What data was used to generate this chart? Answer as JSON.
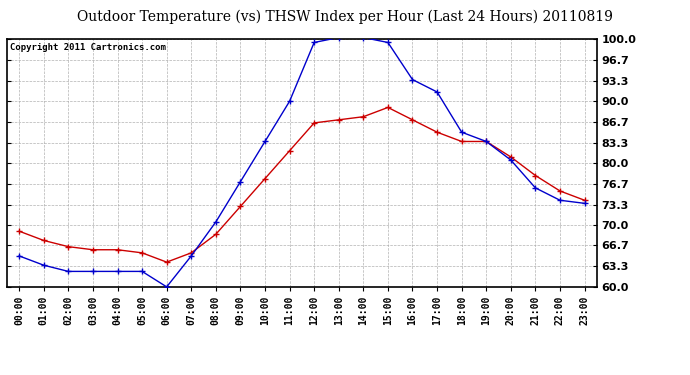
{
  "title": "Outdoor Temperature (vs) THSW Index per Hour (Last 24 Hours) 20110819",
  "copyright": "Copyright 2011 Cartronics.com",
  "hours": [
    "00:00",
    "01:00",
    "02:00",
    "03:00",
    "04:00",
    "05:00",
    "06:00",
    "07:00",
    "08:00",
    "09:00",
    "10:00",
    "11:00",
    "12:00",
    "13:00",
    "14:00",
    "15:00",
    "16:00",
    "17:00",
    "18:00",
    "19:00",
    "20:00",
    "21:00",
    "22:00",
    "23:00"
  ],
  "temp": [
    69.0,
    67.5,
    66.5,
    66.0,
    66.0,
    65.5,
    64.0,
    65.5,
    68.5,
    73.0,
    77.5,
    82.0,
    86.5,
    87.0,
    87.5,
    89.0,
    87.0,
    85.0,
    83.5,
    83.5,
    81.0,
    78.0,
    75.5,
    74.0
  ],
  "thsw": [
    65.0,
    63.5,
    62.5,
    62.5,
    62.5,
    62.5,
    60.0,
    65.0,
    70.5,
    77.0,
    83.5,
    90.0,
    99.5,
    100.3,
    100.3,
    99.5,
    93.5,
    91.5,
    85.0,
    83.5,
    80.5,
    76.0,
    74.0,
    73.5
  ],
  "temp_color": "#cc0000",
  "thsw_color": "#0000cc",
  "ylim": [
    60.0,
    100.0
  ],
  "yticks": [
    60.0,
    63.3,
    66.7,
    70.0,
    73.3,
    76.7,
    80.0,
    83.3,
    86.7,
    90.0,
    93.3,
    96.7,
    100.0
  ],
  "bg_color": "#ffffff",
  "grid_color": "#aaaaaa",
  "title_fontsize": 10,
  "copyright_fontsize": 6.5,
  "tick_fontsize": 7,
  "ytick_fontsize": 8
}
